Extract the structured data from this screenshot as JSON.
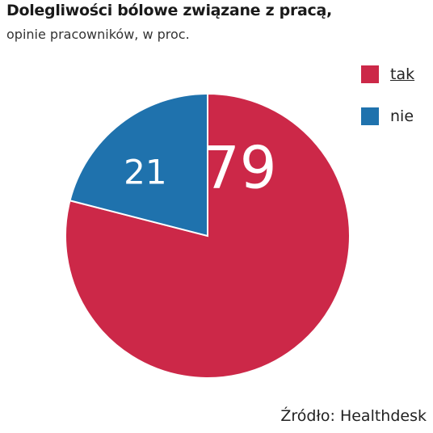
{
  "title": "Dolegliwości bólowe związane z pracą,",
  "subtitle": "opinie pracowników, w proc.",
  "source": "Źródło: Healthdesk",
  "colors": {
    "tak": "#cc2848",
    "nie": "#1f72ad"
  },
  "chart_data": {
    "type": "pie",
    "title": "Dolegliwości bólowe związane z pracą,",
    "subtitle": "opinie pracowników, w proc.",
    "legend_position": "top-right",
    "slices": [
      {
        "label": "tak",
        "value": 79,
        "color": "#cc2848"
      },
      {
        "label": "nie",
        "value": 21,
        "color": "#1f72ad"
      }
    ]
  },
  "legend": {
    "items": [
      {
        "label": "tak",
        "color": "#cc2848"
      },
      {
        "label": "nie",
        "color": "#1f72ad"
      }
    ]
  }
}
